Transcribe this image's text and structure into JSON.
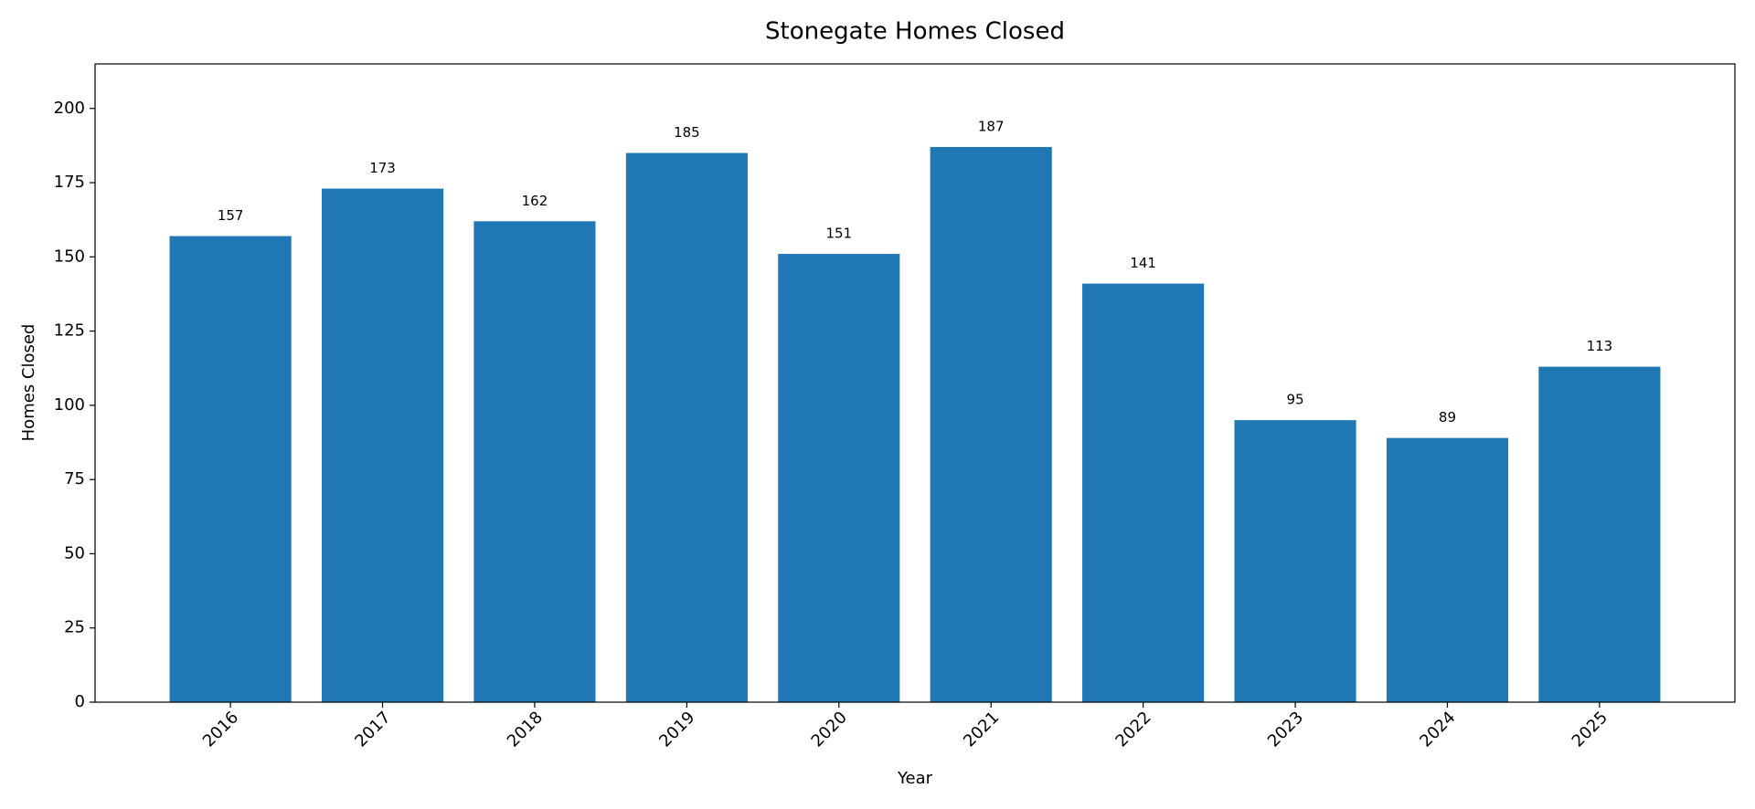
{
  "chart_data": {
    "type": "bar",
    "title": "Stonegate Homes Closed",
    "x_label": "Year",
    "y_label": "Homes Closed",
    "categories": [
      "2016",
      "2017",
      "2018",
      "2019",
      "2020",
      "2021",
      "2022",
      "2023",
      "2024",
      "2025"
    ],
    "values": [
      157,
      173,
      162,
      185,
      151,
      187,
      141,
      95,
      89,
      113
    ],
    "color": "#1f77b4",
    "ylim": [
      0,
      215
    ],
    "yticks": [
      0,
      25,
      50,
      75,
      100,
      125,
      150,
      175,
      200
    ],
    "grid": false
  }
}
